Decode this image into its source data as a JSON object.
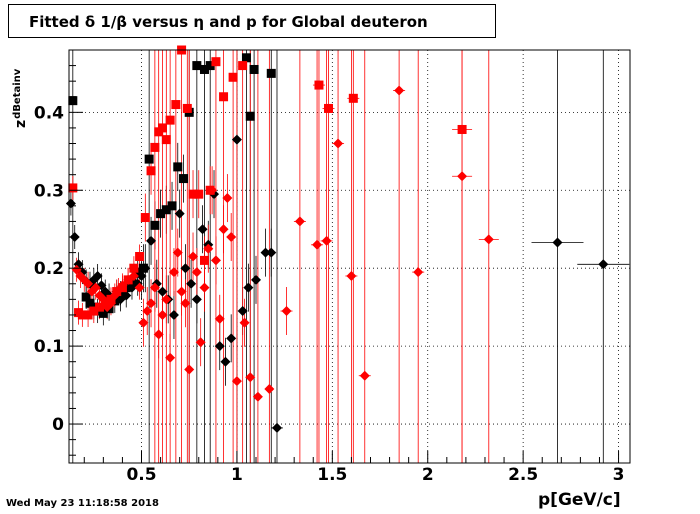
{
  "window": {
    "title": "Fitted δ 1/β versus η and p for Global deuteron",
    "timestamp": "Wed May 23 11:18:58 2018"
  },
  "chart_data": {
    "type": "scatter",
    "title": "Fitted δ 1/β versus η and p for Global deuteron",
    "xlabel": "p[GeV/c]",
    "ylabel": "z",
    "ylabel_sub": "dBetainv",
    "xlim": [
      0.12,
      3.06
    ],
    "ylim": [
      -0.05,
      0.48
    ],
    "x_ticks": [
      0.5,
      1,
      1.5,
      2,
      2.5,
      3
    ],
    "x_tick_labels": [
      "0.5",
      "1",
      "1.5",
      "2",
      "2.5",
      "3"
    ],
    "y_ticks": [
      0,
      0.1,
      0.2,
      0.3,
      0.4
    ],
    "y_tick_labels": [
      "0",
      "0.1",
      "0.2",
      "0.3",
      "0.4"
    ],
    "grid": true,
    "legend": "none",
    "colors": {
      "black": "#000000",
      "red": "#ff0000"
    },
    "series": [
      {
        "color": "black",
        "marker": "square",
        "points": [
          [
            0.14,
            0.415
          ],
          [
            0.21,
            0.163
          ],
          [
            0.23,
            0.155
          ],
          [
            0.25,
            0.15
          ],
          [
            0.27,
            0.145
          ],
          [
            0.3,
            0.142
          ],
          [
            0.33,
            0.148
          ],
          [
            0.36,
            0.158
          ],
          [
            0.39,
            0.168
          ],
          [
            0.42,
            0.175
          ],
          [
            0.45,
            0.185
          ],
          [
            0.48,
            0.195
          ],
          [
            0.51,
            0.2
          ],
          [
            0.54,
            0.34
          ],
          [
            0.57,
            0.255
          ],
          [
            0.6,
            0.27
          ],
          [
            0.63,
            0.275
          ],
          [
            0.66,
            0.28
          ],
          [
            0.69,
            0.33
          ],
          [
            0.72,
            0.315
          ],
          [
            0.75,
            0.4
          ],
          [
            0.79,
            0.46
          ],
          [
            0.83,
            0.455
          ],
          [
            0.86,
            0.46
          ],
          [
            1.05,
            0.47
          ],
          [
            1.07,
            0.395
          ],
          [
            1.09,
            0.455
          ],
          [
            1.18,
            0.45
          ]
        ]
      },
      {
        "color": "black",
        "marker": "diamond",
        "points": [
          [
            0.13,
            0.283
          ],
          [
            0.15,
            0.24
          ],
          [
            0.17,
            0.205
          ],
          [
            0.19,
            0.195
          ],
          [
            0.21,
            0.183
          ],
          [
            0.23,
            0.18
          ],
          [
            0.25,
            0.185
          ],
          [
            0.27,
            0.19
          ],
          [
            0.29,
            0.178
          ],
          [
            0.31,
            0.17
          ],
          [
            0.33,
            0.165
          ],
          [
            0.35,
            0.16
          ],
          [
            0.37,
            0.17
          ],
          [
            0.39,
            0.16
          ],
          [
            0.42,
            0.165
          ],
          [
            0.45,
            0.175
          ],
          [
            0.48,
            0.18
          ],
          [
            0.5,
            0.19
          ],
          [
            0.52,
            0.2
          ],
          [
            0.55,
            0.235
          ],
          [
            0.58,
            0.18
          ],
          [
            0.61,
            0.17
          ],
          [
            0.64,
            0.16
          ],
          [
            0.67,
            0.14
          ],
          [
            0.7,
            0.27
          ],
          [
            0.73,
            0.2
          ],
          [
            0.76,
            0.18
          ],
          [
            0.79,
            0.16
          ],
          [
            0.82,
            0.25
          ],
          [
            0.85,
            0.23
          ],
          [
            0.88,
            0.295
          ],
          [
            0.91,
            0.1
          ],
          [
            0.94,
            0.08
          ],
          [
            0.97,
            0.11
          ],
          [
            1.0,
            0.365
          ],
          [
            1.03,
            0.145
          ],
          [
            1.06,
            0.175
          ],
          [
            1.1,
            0.185
          ],
          [
            1.15,
            0.22
          ],
          [
            1.18,
            0.22
          ],
          [
            1.21,
            -0.005
          ],
          [
            2.68,
            0.233
          ],
          [
            2.92,
            0.205
          ]
        ]
      },
      {
        "color": "red",
        "marker": "square",
        "points": [
          [
            0.14,
            0.303
          ],
          [
            0.17,
            0.143
          ],
          [
            0.19,
            0.14
          ],
          [
            0.22,
            0.14
          ],
          [
            0.25,
            0.145
          ],
          [
            0.28,
            0.15
          ],
          [
            0.31,
            0.155
          ],
          [
            0.34,
            0.16
          ],
          [
            0.37,
            0.17
          ],
          [
            0.4,
            0.175
          ],
          [
            0.43,
            0.185
          ],
          [
            0.46,
            0.2
          ],
          [
            0.49,
            0.215
          ],
          [
            0.52,
            0.265
          ],
          [
            0.55,
            0.325
          ],
          [
            0.57,
            0.355
          ],
          [
            0.59,
            0.375
          ],
          [
            0.61,
            0.38
          ],
          [
            0.63,
            0.365
          ],
          [
            0.65,
            0.39
          ],
          [
            0.68,
            0.41
          ],
          [
            0.71,
            0.48
          ],
          [
            0.74,
            0.405
          ],
          [
            0.77,
            0.295
          ],
          [
            0.8,
            0.295
          ],
          [
            0.83,
            0.21
          ],
          [
            0.86,
            0.3
          ],
          [
            0.89,
            0.465
          ],
          [
            0.93,
            0.42
          ],
          [
            0.98,
            0.445
          ],
          [
            1.03,
            0.46
          ],
          [
            1.43,
            0.435
          ],
          [
            1.48,
            0.405
          ],
          [
            1.61,
            0.418
          ],
          [
            2.18,
            0.378
          ]
        ]
      },
      {
        "color": "red",
        "marker": "diamond",
        "points": [
          [
            0.16,
            0.198
          ],
          [
            0.18,
            0.19
          ],
          [
            0.2,
            0.185
          ],
          [
            0.22,
            0.18
          ],
          [
            0.24,
            0.17
          ],
          [
            0.26,
            0.175
          ],
          [
            0.28,
            0.165
          ],
          [
            0.3,
            0.16
          ],
          [
            0.32,
            0.15
          ],
          [
            0.34,
            0.155
          ],
          [
            0.36,
            0.165
          ],
          [
            0.38,
            0.172
          ],
          [
            0.4,
            0.178
          ],
          [
            0.43,
            0.185
          ],
          [
            0.46,
            0.19
          ],
          [
            0.49,
            0.175
          ],
          [
            0.51,
            0.13
          ],
          [
            0.53,
            0.145
          ],
          [
            0.55,
            0.155
          ],
          [
            0.57,
            0.175
          ],
          [
            0.59,
            0.115
          ],
          [
            0.61,
            0.14
          ],
          [
            0.63,
            0.16
          ],
          [
            0.65,
            0.085
          ],
          [
            0.67,
            0.195
          ],
          [
            0.69,
            0.22
          ],
          [
            0.71,
            0.17
          ],
          [
            0.73,
            0.155
          ],
          [
            0.75,
            0.07
          ],
          [
            0.77,
            0.215
          ],
          [
            0.79,
            0.195
          ],
          [
            0.81,
            0.105
          ],
          [
            0.83,
            0.175
          ],
          [
            0.85,
            0.225
          ],
          [
            0.87,
            0.3
          ],
          [
            0.89,
            0.21
          ],
          [
            0.91,
            0.135
          ],
          [
            0.93,
            0.25
          ],
          [
            0.95,
            0.29
          ],
          [
            0.97,
            0.24
          ],
          [
            1.0,
            0.055
          ],
          [
            1.04,
            0.13
          ],
          [
            1.07,
            0.06
          ],
          [
            1.11,
            0.035
          ],
          [
            1.17,
            0.045
          ],
          [
            1.26,
            0.145
          ],
          [
            1.33,
            0.26
          ],
          [
            1.42,
            0.23
          ],
          [
            1.47,
            0.235
          ],
          [
            1.53,
            0.36
          ],
          [
            1.6,
            0.19
          ],
          [
            1.67,
            0.062
          ],
          [
            1.85,
            0.428
          ],
          [
            1.95,
            0.195
          ],
          [
            2.18,
            0.318
          ],
          [
            2.32,
            0.237
          ]
        ]
      }
    ]
  }
}
